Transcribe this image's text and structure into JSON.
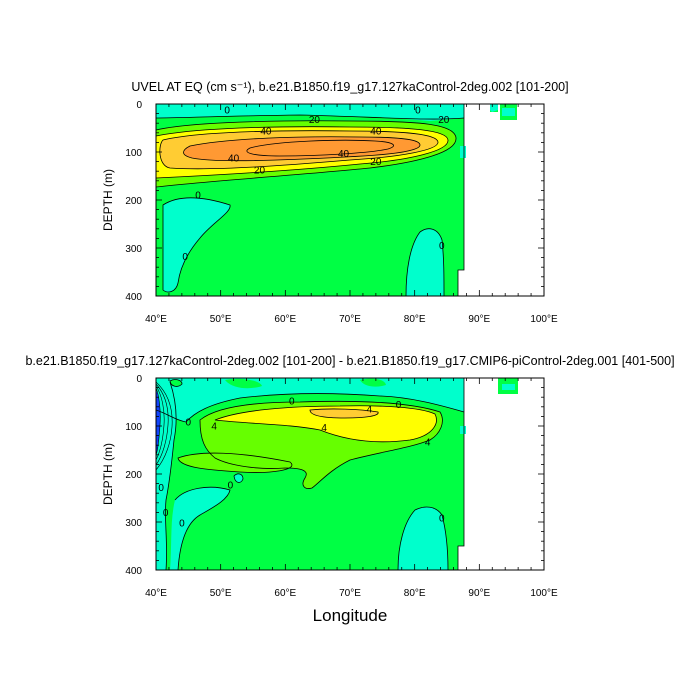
{
  "colors": {
    "c_neg": "#00ffcc",
    "c_0_5": "#00ff44",
    "c_low": "#66ff00",
    "c_mid": "#ffff00",
    "c_20": "#ffcc33",
    "c_30": "#ff9933",
    "c_strong_neg": "#1144ff",
    "frame": "#000000"
  },
  "chart_data": [
    {
      "type": "heatmap",
      "title": "UVEL AT EQ (cm s⁻¹), b.e21.B1850.f19_g17.127kaControl-2deg.002 [101-200]",
      "xlabel": "",
      "ylabel": "DEPTH (m)",
      "xlim": [
        40,
        100
      ],
      "ylim": [
        400,
        0
      ],
      "x_ticks": [
        "40°E",
        "50°E",
        "60°E",
        "70°E",
        "80°E",
        "90°E",
        "100°E"
      ],
      "y_ticks": [
        "0",
        "100",
        "200",
        "300",
        "400"
      ],
      "contour_labels": [
        {
          "text": "0",
          "lon": 51,
          "depth": 12
        },
        {
          "text": "0",
          "lon": 80.5,
          "depth": 12
        },
        {
          "text": "20",
          "lon": 64.5,
          "depth": 32
        },
        {
          "text": "20",
          "lon": 84.5,
          "depth": 32
        },
        {
          "text": "40",
          "lon": 57,
          "depth": 56
        },
        {
          "text": "40",
          "lon": 74,
          "depth": 56
        },
        {
          "text": "40",
          "lon": 52,
          "depth": 113
        },
        {
          "text": "40",
          "lon": 69,
          "depth": 103
        },
        {
          "text": "20",
          "lon": 56,
          "depth": 138
        },
        {
          "text": "20",
          "lon": 74,
          "depth": 120
        },
        {
          "text": "0",
          "lon": 46.5,
          "depth": 190
        },
        {
          "text": "0",
          "lon": 44.5,
          "depth": 318
        },
        {
          "text": "0",
          "lon": 84.2,
          "depth": 295
        }
      ]
    },
    {
      "type": "heatmap",
      "title": "b.e21.B1850.f19_g17.127kaControl-2deg.002 [101-200] - b.e21.B1850.f19_g17.CMIP6-piControl-2deg.001 [401-500]",
      "xlabel": "Longitude",
      "ylabel": "DEPTH (m)",
      "xlim": [
        40,
        100
      ],
      "ylim": [
        400,
        0
      ],
      "x_ticks": [
        "40°E",
        "50°E",
        "60°E",
        "70°E",
        "80°E",
        "90°E",
        "100°E"
      ],
      "y_ticks": [
        "0",
        "100",
        "200",
        "300",
        "400"
      ],
      "contour_labels": [
        {
          "text": "0",
          "lon": 61,
          "depth": 48
        },
        {
          "text": "4",
          "lon": 73,
          "depth": 65
        },
        {
          "text": "0",
          "lon": 77.5,
          "depth": 55
        },
        {
          "text": "0",
          "lon": 45,
          "depth": 92
        },
        {
          "text": "4",
          "lon": 49,
          "depth": 100
        },
        {
          "text": "4",
          "lon": 66,
          "depth": 103
        },
        {
          "text": "4",
          "lon": 82,
          "depth": 133
        },
        {
          "text": "0",
          "lon": 51.5,
          "depth": 223
        },
        {
          "text": "0",
          "lon": 40.8,
          "depth": 228
        },
        {
          "text": "0",
          "lon": 41.5,
          "depth": 280
        },
        {
          "text": "0",
          "lon": 44,
          "depth": 302
        },
        {
          "text": "0",
          "lon": 84.2,
          "depth": 292
        }
      ]
    }
  ]
}
